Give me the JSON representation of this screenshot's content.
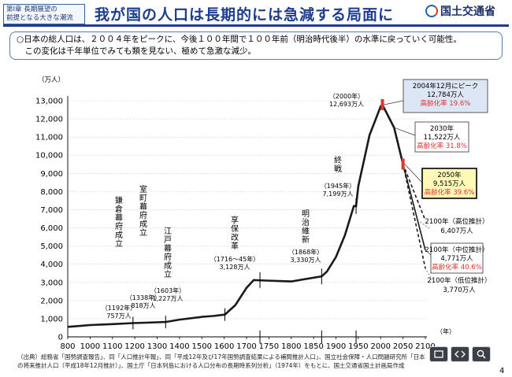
{
  "header": {
    "chapter_line1": "第Ⅰ章 長期展望の",
    "chapter_line2": "前提となる大きな潮流",
    "title": "我が国の人口は長期的には急減する局面に",
    "logo_text": "国土交通省",
    "accent_color": "#1c3d8f"
  },
  "notes": {
    "line1": "○日本の総人口は、２００４年をピークに、今後１００年間で１００年前（明治時代後半）の水準に戻っていく可能性。",
    "line2": "　この変化は千年単位でみても類を見ない、極めて急激な減少。"
  },
  "chart_data": {
    "type": "line",
    "ylabel": "（万人）",
    "xlabel": "（年）",
    "xlim": [
      800,
      2100
    ],
    "ylim": [
      0,
      13000
    ],
    "x_ticks": [
      800,
      1000,
      1100,
      1200,
      1300,
      1400,
      1500,
      1600,
      1700,
      1750,
      1800,
      1850,
      1900,
      1950,
      2000,
      2050,
      2100
    ],
    "y_ticks": [
      "0",
      "1,000",
      "2,000",
      "3,000",
      "4,000",
      "5,000",
      "6,000",
      "7,000",
      "8,000",
      "9,000",
      "10,000",
      "11,000",
      "12,000",
      "13,000"
    ],
    "grid": "horizontal",
    "series": [
      {
        "style": "solid",
        "x": [
          800,
          900,
          1000,
          1100,
          1192,
          1250,
          1338,
          1400,
          1500,
          1550,
          1603,
          1650,
          1700,
          1716,
          1745,
          1800,
          1868,
          1880,
          1900,
          1920,
          1940,
          1945,
          1950,
          1975,
          2000,
          2004,
          2030,
          2050
        ],
        "y": [
          551,
          600,
          650,
          700,
          757,
          780,
          818,
          950,
          1100,
          1150,
          1227,
          1750,
          2700,
          3128,
          3100,
          3050,
          3330,
          3600,
          4400,
          5600,
          7200,
          7199,
          8300,
          11100,
          12693,
          12784,
          11522,
          9515
        ]
      },
      {
        "name": "2100年（高位推計）",
        "style": "dashed",
        "x": [
          2050,
          2100
        ],
        "y": [
          9515,
          6407
        ]
      },
      {
        "name": "2100年（中位推計）",
        "style": "solid",
        "x": [
          2050,
          2100
        ],
        "y": [
          9515,
          4771
        ]
      },
      {
        "name": "2100年（低位推計）",
        "style": "dashed",
        "x": [
          2050,
          2100
        ],
        "y": [
          9515,
          3770
        ]
      }
    ],
    "annotations": [
      {
        "label": "鎌倉幕府成立",
        "x": 1192,
        "year": "（1192年）",
        "value": "757万人"
      },
      {
        "label": "室町幕府成立",
        "x": 1338,
        "year": "（1338年）",
        "value": "818万人"
      },
      {
        "label": "江戸幕府成立",
        "x": 1603,
        "year": "（1603年）",
        "value": "1,227万人"
      },
      {
        "label": "享保改革",
        "x": 1730,
        "year": "（1716～45年）",
        "value": "3,128万人"
      },
      {
        "label": "明治維新",
        "x": 1868,
        "year": "（1868年）",
        "value": "3,330万人"
      },
      {
        "label": "終戦",
        "x": 1945,
        "year": "（1945年）",
        "value": "7,199万人"
      },
      {
        "label": "",
        "x": 2000,
        "year": "（2000年）",
        "value": "12,693万人"
      }
    ],
    "callouts": {
      "peak": {
        "line1": "2004年12月にピーク",
        "line2": "12,784万人",
        "line3": "高齢化率 19.6%"
      },
      "y2030": {
        "line1": "2030年",
        "line2": "11,522万人",
        "line3": "高齢化率 31.8%"
      },
      "y2050": {
        "line1": "2050年",
        "line2": "9,515万人",
        "line3": "高齢化率 39.6%"
      },
      "high": {
        "line1": "2100年（高位推計）",
        "line2": "6,407万人"
      },
      "mid": {
        "line1": "2100年（中位推計）",
        "line2": "4,771万人",
        "line3": "高齢化率 40.6%"
      },
      "low": {
        "line1": "2100年（低位推計）",
        "line2": "3,770万人"
      }
    },
    "colors": {
      "line": "#1a1a1a",
      "highlight": "#e2332f",
      "peak_box_bg": "#dde6f4",
      "y2050_box_bg": "#fff9b8"
    }
  },
  "source": {
    "line1": "（出典）総務省「国勢調査報告」、同「人口推計年報」、同「平成12年及び17年国勢調査結果による補間推計人口」、国立社会保障・人口問題研究所「日本",
    "line2": "の将来推計人口（平成18年12月推計）」、国土庁「日本列島における人口分布の長期時系列分析」（1974年）をもとに、国土交通省国土計画局作成"
  },
  "page_number": "4"
}
